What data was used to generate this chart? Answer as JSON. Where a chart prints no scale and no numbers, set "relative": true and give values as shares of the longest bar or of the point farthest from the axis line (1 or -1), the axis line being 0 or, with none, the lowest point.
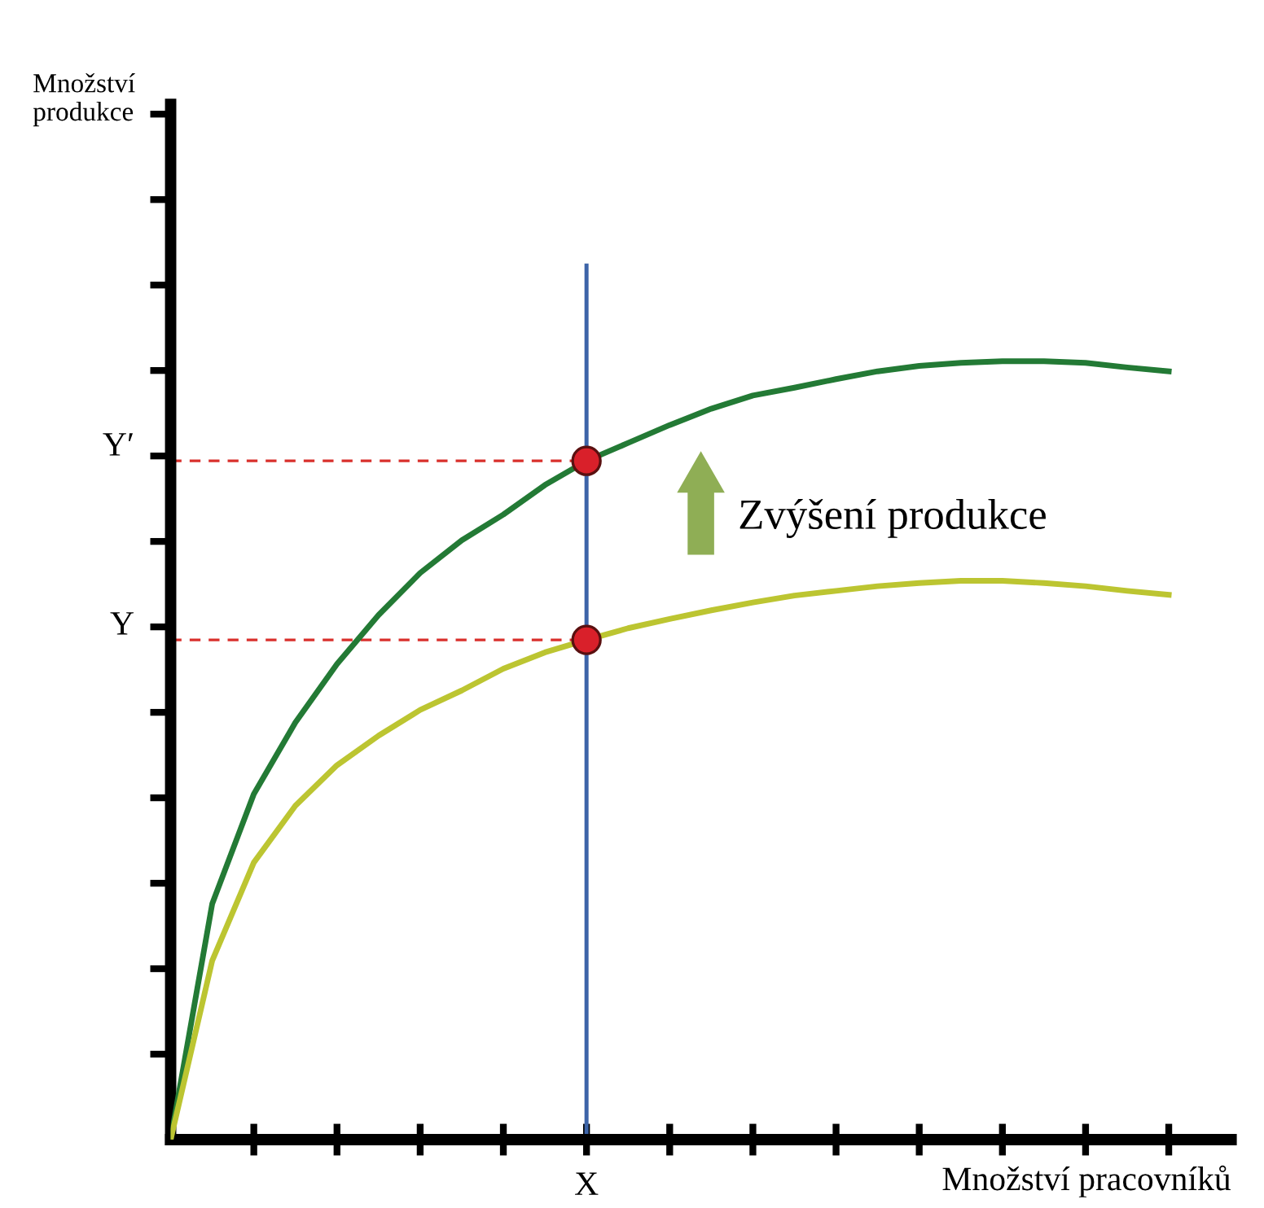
{
  "chart_data": {
    "type": "line",
    "relative": true,
    "categories": [
      null,
      null,
      null,
      null,
      null,
      null,
      null,
      null,
      null,
      null,
      null,
      null,
      null,
      null,
      null,
      null,
      null,
      null,
      null,
      null,
      null,
      null,
      null,
      null,
      null
    ],
    "legend": false,
    "marker": "none",
    "line_style": "solid",
    "series": [
      {
        "color": "#237a35",
        "values": [
          0,
          0.303,
          0.444,
          0.536,
          0.611,
          0.674,
          0.728,
          0.77,
          0.803,
          0.841,
          0.872,
          0.895,
          0.918,
          0.939,
          0.956,
          0.966,
          0.977,
          0.987,
          0.994,
          0.998,
          1.0,
          1.0,
          0.998,
          0.992,
          0.987
        ]
      },
      {
        "color": "#bcc531",
        "values": [
          0,
          0.23,
          0.356,
          0.429,
          0.481,
          0.519,
          0.552,
          0.577,
          0.605,
          0.626,
          0.642,
          0.657,
          0.669,
          0.68,
          0.69,
          0.699,
          0.705,
          0.711,
          0.715,
          0.718,
          0.718,
          0.715,
          0.711,
          0.705,
          0.7
        ]
      }
    ],
    "ref_lines": [
      {
        "axis": "y",
        "value": 0.872,
        "label": "Y′",
        "color": "#d9302c",
        "line_style": "dashed"
      },
      {
        "axis": "y",
        "value": 0.642,
        "label": "Y",
        "color": "#d9302c",
        "line_style": "dashed"
      }
    ],
    "annotations": [
      "Množství\nprodukce",
      "Množství pracovníků",
      "X",
      "Zvýšení produkce"
    ]
  }
}
